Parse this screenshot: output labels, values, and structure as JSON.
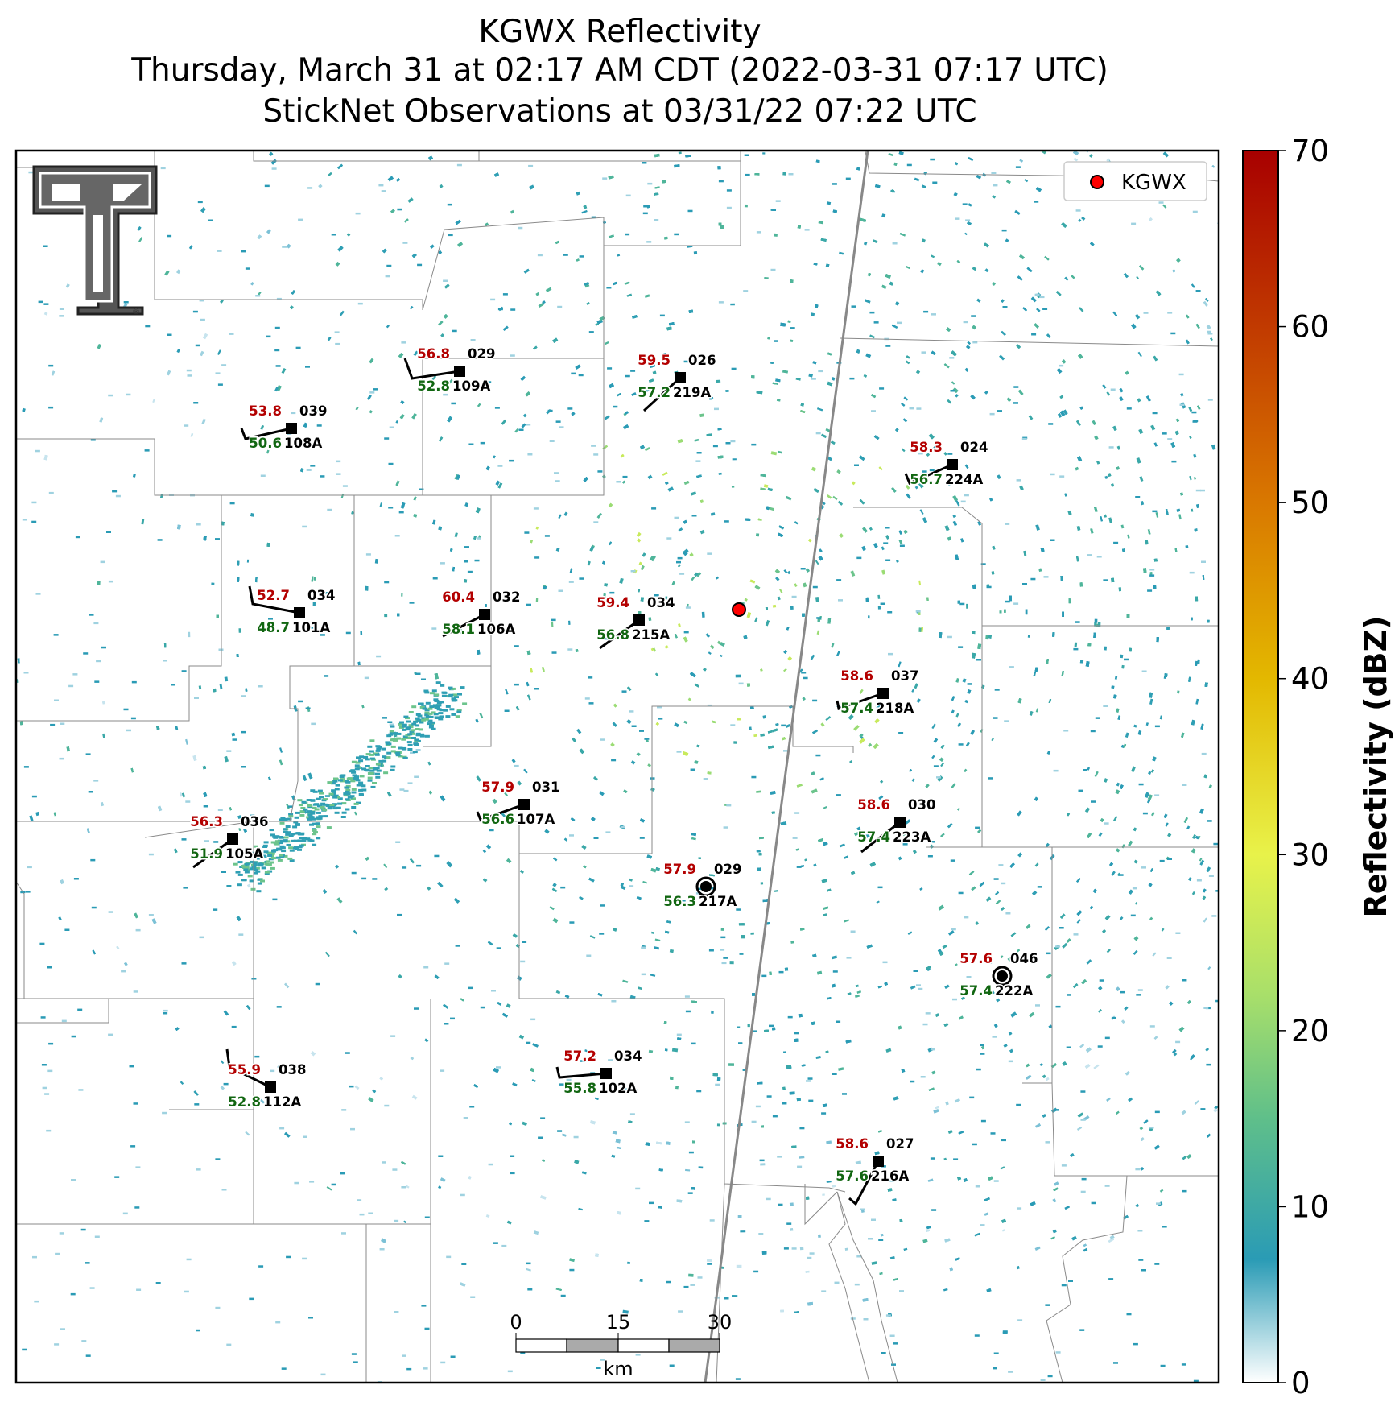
{
  "title": {
    "line1": "KGWX Reflectivity",
    "line2": "Thursday, March 31 at 02:17 AM CDT (2022-03-31 07:17 UTC)",
    "line3": "StickNet Observations at 03/31/22 07:22 UTC"
  },
  "legend": {
    "label": "KGWX",
    "marker_color": "#ff0000"
  },
  "colorbar": {
    "label": "Reflectivity (dBZ)",
    "min": 0,
    "max": 70,
    "ticks": [
      "0",
      "10",
      "20",
      "30",
      "40",
      "50",
      "60",
      "70"
    ],
    "stops": [
      {
        "v": 0,
        "c": "#ffffff"
      },
      {
        "v": 7,
        "c": "#2a9bb5"
      },
      {
        "v": 15,
        "c": "#5fbf8a"
      },
      {
        "v": 22,
        "c": "#a8df6a"
      },
      {
        "v": 30,
        "c": "#e8f24a"
      },
      {
        "v": 40,
        "c": "#e3b800"
      },
      {
        "v": 50,
        "c": "#d97800"
      },
      {
        "v": 60,
        "c": "#c13a00"
      },
      {
        "v": 70,
        "c": "#a80000"
      }
    ]
  },
  "scalebar": {
    "ticks": [
      "0",
      "15",
      "30"
    ],
    "unit": "km"
  },
  "logo": {
    "icon": "texas-tech-double-t-logo"
  },
  "stations": [
    {
      "id": "108A",
      "temp": "53.8",
      "dew": "50.6",
      "press": "039"
    },
    {
      "id": "109A",
      "temp": "56.8",
      "dew": "52.8",
      "press": "029"
    },
    {
      "id": "219A",
      "temp": "59.5",
      "dew": "57.2",
      "press": "026"
    },
    {
      "id": "224A",
      "temp": "58.3",
      "dew": "56.7",
      "press": "024"
    },
    {
      "id": "101A",
      "temp": "52.7",
      "dew": "48.7",
      "press": "034"
    },
    {
      "id": "106A",
      "temp": "60.4",
      "dew": "58.1",
      "press": "032"
    },
    {
      "id": "215A",
      "temp": "59.4",
      "dew": "56.8",
      "press": "034"
    },
    {
      "id": "218A",
      "temp": "58.6",
      "dew": "57.4",
      "press": "037"
    },
    {
      "id": "107A",
      "temp": "57.9",
      "dew": "56.6",
      "press": "031"
    },
    {
      "id": "105A",
      "temp": "56.3",
      "dew": "51.9",
      "press": "036"
    },
    {
      "id": "223A",
      "temp": "58.6",
      "dew": "57.4",
      "press": "030"
    },
    {
      "id": "217A",
      "temp": "57.9",
      "dew": "56.3",
      "press": "029"
    },
    {
      "id": "222A",
      "temp": "57.6",
      "dew": "57.4",
      "press": "046"
    },
    {
      "id": "112A",
      "temp": "55.9",
      "dew": "52.8",
      "press": "038"
    },
    {
      "id": "102A",
      "temp": "57.2",
      "dew": "55.8",
      "press": "034"
    },
    {
      "id": "216A",
      "temp": "58.6",
      "dew": "57.6",
      "press": "027"
    }
  ]
}
